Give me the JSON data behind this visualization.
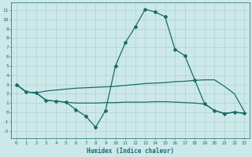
{
  "xlabel": "Humidex (Indice chaleur)",
  "background_color": "#cce8e8",
  "grid_color": "#aacccc",
  "line_color": "#1a6b6b",
  "xlim": [
    -0.5,
    23.5
  ],
  "ylim": [
    -2.8,
    11.8
  ],
  "xticks": [
    0,
    1,
    2,
    3,
    4,
    5,
    6,
    7,
    8,
    9,
    10,
    11,
    12,
    13,
    14,
    15,
    16,
    17,
    18,
    19,
    20,
    21,
    22,
    23
  ],
  "yticks": [
    -2,
    -1,
    0,
    1,
    2,
    3,
    4,
    5,
    6,
    7,
    8,
    9,
    10,
    11
  ],
  "spike_x": [
    0,
    1,
    2,
    3,
    4,
    5,
    6,
    7,
    8,
    9,
    10,
    11,
    12,
    13,
    14,
    15,
    16,
    17,
    18,
    19,
    20,
    21,
    22,
    23
  ],
  "spike_y": [
    3.0,
    2.2,
    2.1,
    1.3,
    1.2,
    1.1,
    0.3,
    -0.4,
    -1.6,
    0.2,
    5.0,
    7.5,
    9.2,
    11.1,
    10.8,
    10.3,
    6.8,
    6.1,
    3.5,
    0.9,
    0.2,
    -0.15,
    0.05,
    -0.1
  ],
  "upper_flat_x": [
    0,
    1,
    2,
    3,
    4,
    5,
    6,
    7,
    8,
    9,
    10,
    11,
    12,
    13,
    14,
    15,
    16,
    17,
    18,
    19,
    20,
    21,
    22,
    23
  ],
  "upper_flat_y": [
    3.0,
    2.2,
    2.1,
    2.3,
    2.4,
    2.5,
    2.6,
    2.65,
    2.7,
    2.75,
    2.8,
    2.9,
    3.0,
    3.1,
    3.15,
    3.2,
    3.3,
    3.35,
    3.45,
    3.5,
    3.5,
    2.8,
    2.0,
    0.1
  ],
  "lower_flat_x": [
    0,
    1,
    2,
    3,
    4,
    5,
    6,
    7,
    8,
    9,
    10,
    11,
    12,
    13,
    14,
    15,
    16,
    17,
    18,
    19,
    20,
    21,
    22,
    23
  ],
  "lower_flat_y": [
    3.0,
    2.2,
    2.1,
    1.3,
    1.2,
    1.1,
    1.0,
    1.0,
    1.0,
    1.05,
    1.05,
    1.1,
    1.1,
    1.1,
    1.15,
    1.15,
    1.1,
    1.05,
    1.0,
    0.9,
    0.2,
    -0.1,
    0.0,
    -0.1
  ]
}
